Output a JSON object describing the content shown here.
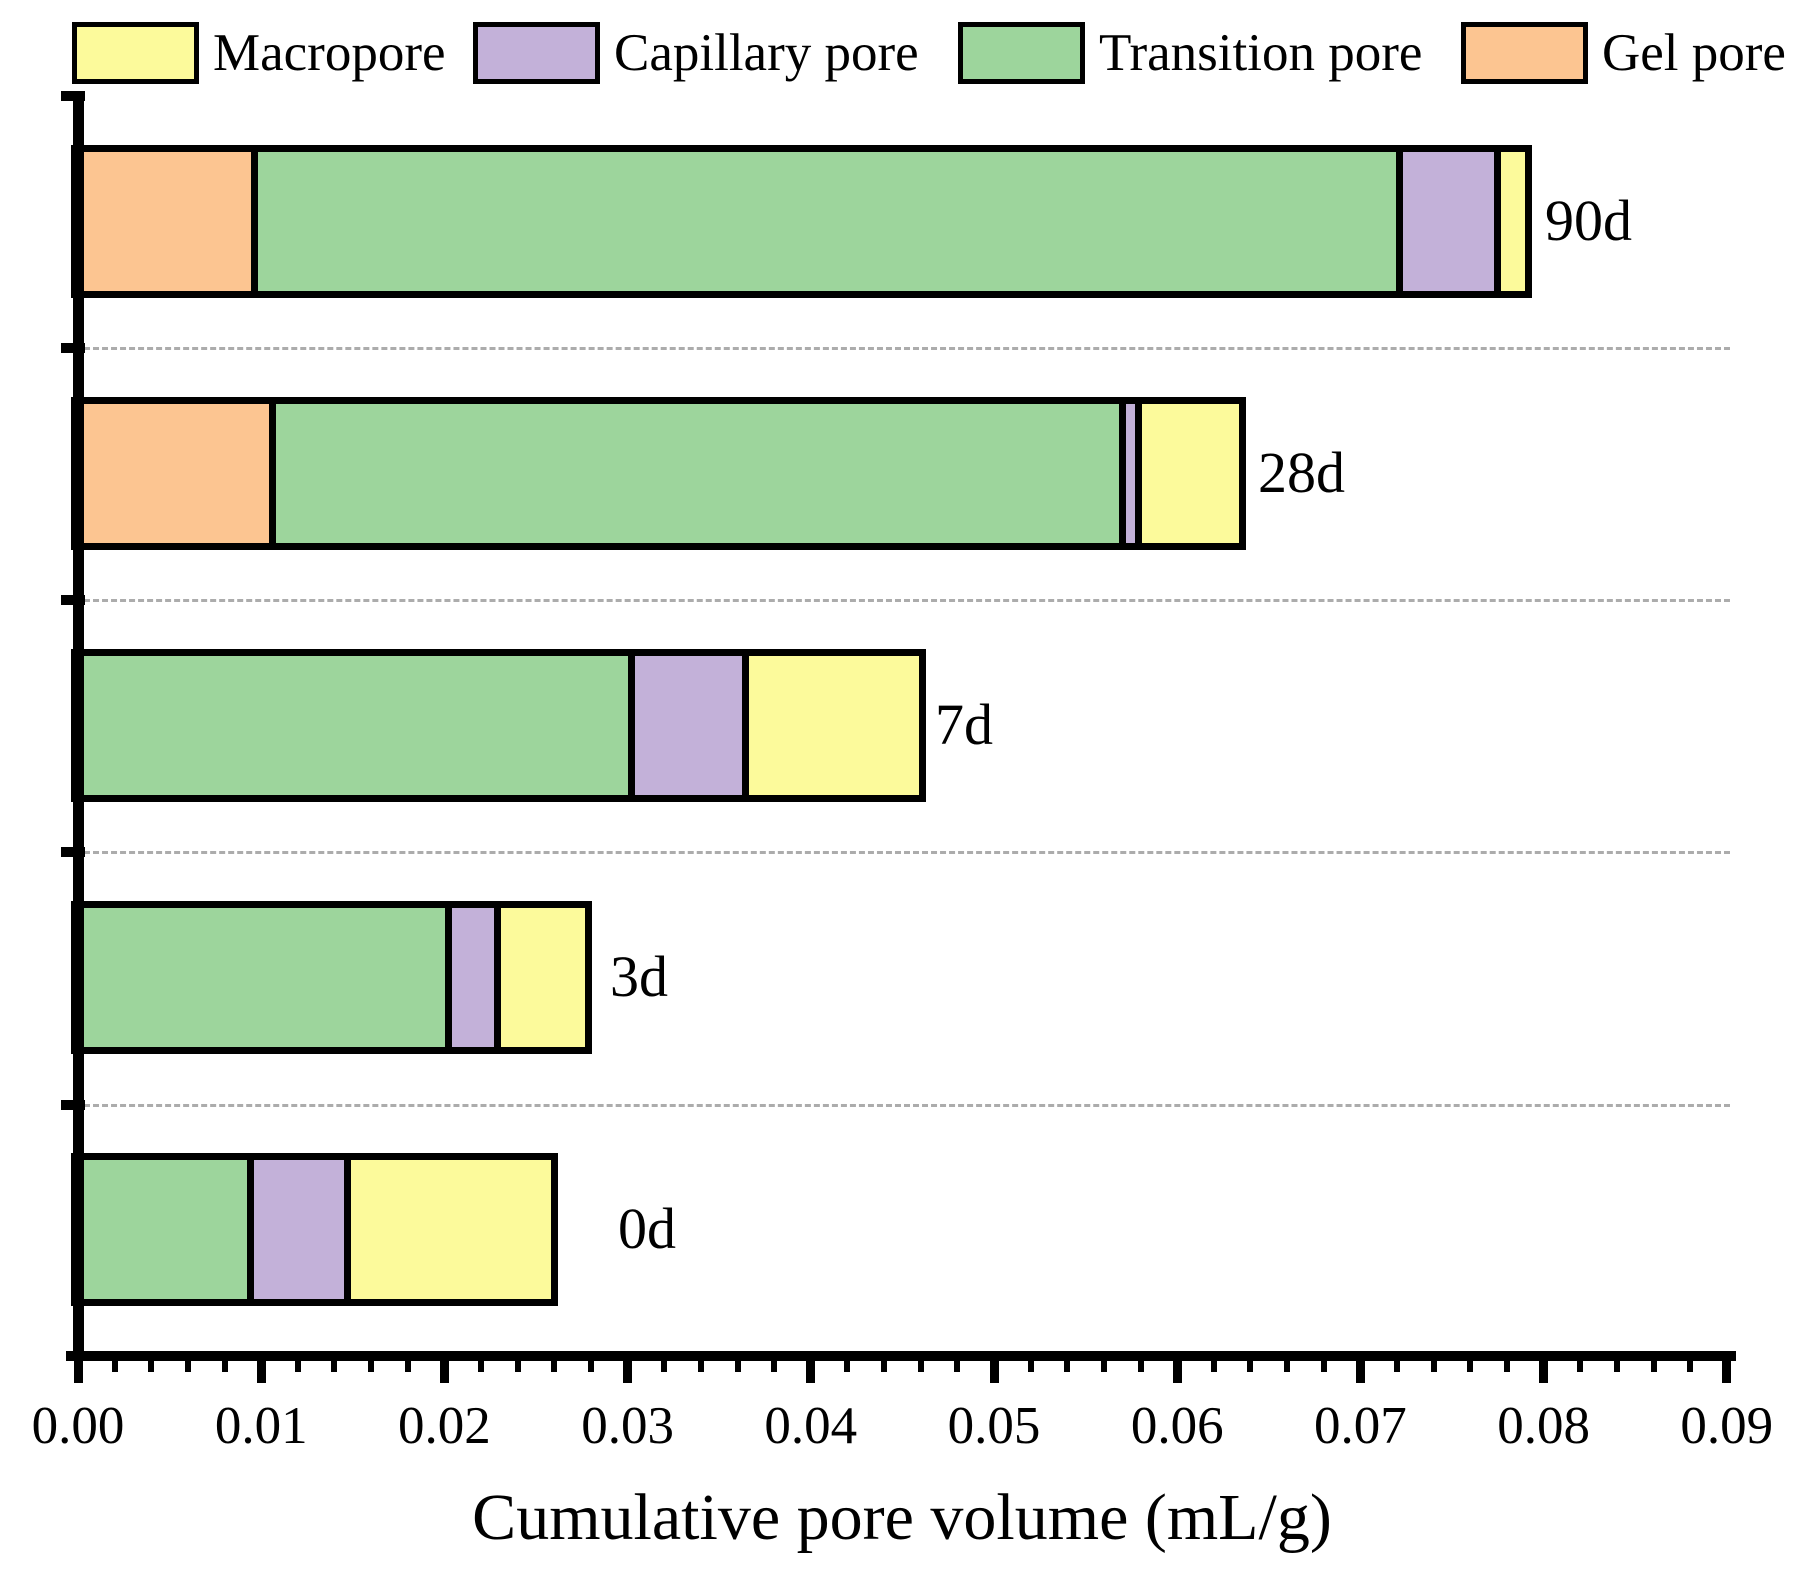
{
  "legend": {
    "items": [
      {
        "label": "Macropore",
        "color": "#fcfa9b"
      },
      {
        "label": "Capillary pore",
        "color": "#c3b1d9"
      },
      {
        "label": "Transition pore",
        "color": "#9dd59c"
      },
      {
        "label": "Gel pore",
        "color": "#fcc591"
      }
    ]
  },
  "chart_data": {
    "type": "bar",
    "orientation": "horizontal",
    "stacked": true,
    "title": "",
    "xlabel": "Cumulative pore volume (mL/g)",
    "ylabel": "",
    "categories": [
      "0d",
      "3d",
      "7d",
      "28d",
      "90d"
    ],
    "series": [
      {
        "name": "Gel pore",
        "color": "#fcc591",
        "values": [
          0,
          0,
          0,
          0.0108,
          0.0098
        ]
      },
      {
        "name": "Transition pore",
        "color": "#9dd59c",
        "values": [
          0.0096,
          0.0204,
          0.0304,
          0.0464,
          0.0625
        ]
      },
      {
        "name": "Capillary pore",
        "color": "#c3b1d9",
        "values": [
          0.0053,
          0.0027,
          0.0062,
          0.0009,
          0.0054
        ]
      },
      {
        "name": "Macropore",
        "color": "#fcfa9b",
        "values": [
          0.0109,
          0.0046,
          0.0093,
          0.0053,
          0.0013
        ]
      }
    ],
    "totals": [
      0.0258,
      0.0277,
      0.0459,
      0.0634,
      0.079
    ],
    "xlim": [
      0,
      0.09
    ],
    "x_ticks": [
      "0.00",
      "0.01",
      "0.02",
      "0.03",
      "0.04",
      "0.05",
      "0.06",
      "0.07",
      "0.08",
      "0.09"
    ],
    "x_minor_tick_step": 0.002,
    "grid": "horizontal dashed lines between category bars",
    "legend_position": "top",
    "axis_color": "#000000",
    "gridline_color": "#acacac",
    "bar_border_color": "#000000"
  }
}
